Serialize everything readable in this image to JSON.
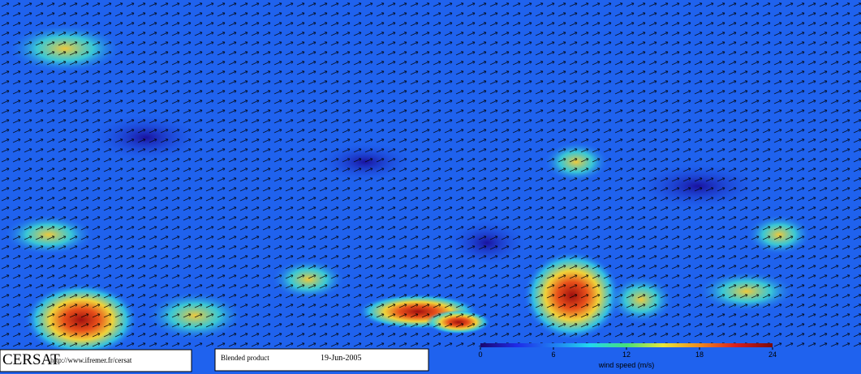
{
  "logo": {
    "name": "CERSAT",
    "url": "http://www.ifremer.fr/cersat"
  },
  "product": {
    "label": "Blended product",
    "date": "19-Jun-2005"
  },
  "colorbar": {
    "label": "wind speed (m/s)",
    "lim": [
      0,
      24
    ],
    "ticks": [
      0,
      6,
      12,
      18,
      24
    ],
    "colors": [
      "#1a0670",
      "#1f2be8",
      "#1f7cf0",
      "#22d8f0",
      "#46e07a",
      "#e8e83a",
      "#f08a1e",
      "#d81e1e",
      "#7a0a0a"
    ]
  }
}
